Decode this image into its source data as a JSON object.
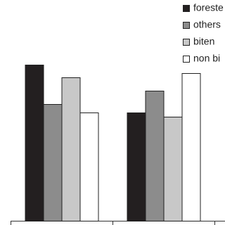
{
  "chart_data": {
    "type": "bar",
    "categories": [
      null,
      null
    ],
    "series": [
      {
        "name": "foreste",
        "color": "#231f20",
        "values": [
          222,
          154
        ]
      },
      {
        "name": "others",
        "color": "#8c8c8c",
        "values": [
          166,
          185
        ]
      },
      {
        "name": "biten",
        "color": "#c8c8c8",
        "values": [
          204,
          148
        ]
      },
      {
        "name": "non bi",
        "color": "#ffffff",
        "values": [
          154,
          210
        ]
      }
    ],
    "ylim": [
      0,
      314
    ],
    "legend": "top-right"
  }
}
